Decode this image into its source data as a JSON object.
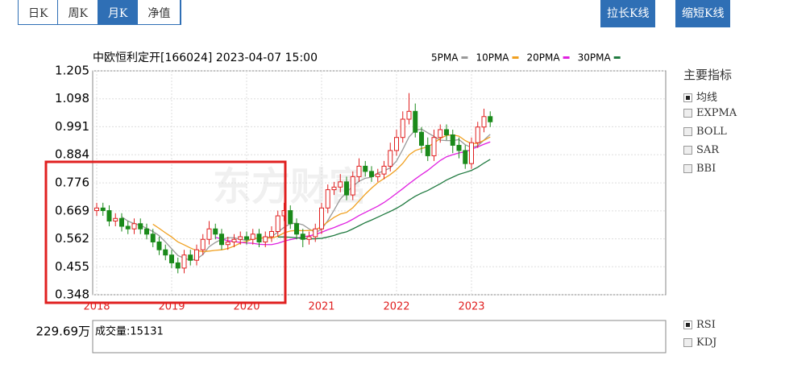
{
  "ui": {
    "tabs": [
      "日K",
      "周K",
      "月K",
      "净值"
    ],
    "buttons": [
      "拉长K线",
      "缩短K线"
    ],
    "indicator_title": "主要指标",
    "indicators": [
      "均线",
      "EXPMA",
      "BOLL",
      "SAR",
      "BBI"
    ],
    "lower_indicators": [
      "RSI",
      "KDJ"
    ],
    "volume_axis": "229.69万",
    "volume_label": "成交量:15131",
    "watermark": "东方财富"
  },
  "chart_data": {
    "type": "candlestick",
    "title": "中欧恒利定开[166024] 2023-04-07 15:00",
    "categories": [
      "2018",
      null,
      null,
      null,
      null,
      null,
      null,
      null,
      null,
      null,
      null,
      null,
      "2019",
      null,
      null,
      null,
      null,
      null,
      null,
      null,
      null,
      null,
      null,
      null,
      "2020",
      null,
      null,
      null,
      null,
      null,
      null,
      null,
      null,
      null,
      null,
      null,
      "2021",
      null,
      null,
      null,
      null,
      null,
      null,
      null,
      null,
      null,
      null,
      null,
      "2022",
      null,
      null,
      null,
      null,
      null,
      null,
      null,
      null,
      null,
      null,
      null,
      "2023",
      null,
      null,
      null
    ],
    "open": [
      0.67,
      0.68,
      0.67,
      0.63,
      0.64,
      0.61,
      0.6,
      0.62,
      0.6,
      0.58,
      0.55,
      0.52,
      0.5,
      0.47,
      0.45,
      0.5,
      0.48,
      0.52,
      0.56,
      0.6,
      0.58,
      0.54,
      0.55,
      0.56,
      0.57,
      0.56,
      0.58,
      0.55,
      0.57,
      0.59,
      0.65,
      0.67,
      0.62,
      0.58,
      0.56,
      0.57,
      0.6,
      0.68,
      0.75,
      0.76,
      0.78,
      0.73,
      0.8,
      0.84,
      0.82,
      0.8,
      0.81,
      0.84,
      0.9,
      0.95,
      1.02,
      1.05,
      0.97,
      0.92,
      0.88,
      0.95,
      0.98,
      0.96,
      0.92,
      0.9,
      0.85,
      0.93,
      0.99,
      1.03
    ],
    "high": [
      0.7,
      0.7,
      0.69,
      0.66,
      0.66,
      0.63,
      0.64,
      0.64,
      0.62,
      0.6,
      0.57,
      0.54,
      0.52,
      0.49,
      0.52,
      0.52,
      0.54,
      0.58,
      0.63,
      0.62,
      0.6,
      0.57,
      0.58,
      0.59,
      0.59,
      0.6,
      0.6,
      0.59,
      0.61,
      0.67,
      0.7,
      0.69,
      0.64,
      0.6,
      0.59,
      0.62,
      0.7,
      0.77,
      0.78,
      0.81,
      0.8,
      0.82,
      0.87,
      0.86,
      0.84,
      0.83,
      0.86,
      0.93,
      0.98,
      1.05,
      1.12,
      1.08,
      0.99,
      0.95,
      0.98,
      1.0,
      1.0,
      0.98,
      0.95,
      0.92,
      0.95,
      1.01,
      1.06,
      1.05
    ],
    "low": [
      0.65,
      0.65,
      0.61,
      0.61,
      0.59,
      0.58,
      0.58,
      0.58,
      0.56,
      0.53,
      0.5,
      0.48,
      0.45,
      0.43,
      0.43,
      0.46,
      0.46,
      0.5,
      0.54,
      0.56,
      0.52,
      0.52,
      0.53,
      0.54,
      0.54,
      0.54,
      0.53,
      0.53,
      0.55,
      0.57,
      0.63,
      0.6,
      0.56,
      0.53,
      0.54,
      0.55,
      0.58,
      0.66,
      0.73,
      0.74,
      0.71,
      0.71,
      0.78,
      0.8,
      0.78,
      0.78,
      0.79,
      0.82,
      0.88,
      0.93,
      1.0,
      0.95,
      0.89,
      0.86,
      0.86,
      0.93,
      0.94,
      0.89,
      0.87,
      0.83,
      0.83,
      0.91,
      0.97,
      0.99
    ],
    "close": [
      0.68,
      0.67,
      0.63,
      0.64,
      0.61,
      0.6,
      0.62,
      0.6,
      0.58,
      0.55,
      0.52,
      0.5,
      0.47,
      0.45,
      0.5,
      0.48,
      0.52,
      0.56,
      0.6,
      0.58,
      0.54,
      0.55,
      0.56,
      0.57,
      0.56,
      0.58,
      0.55,
      0.57,
      0.59,
      0.65,
      0.67,
      0.62,
      0.58,
      0.56,
      0.57,
      0.6,
      0.68,
      0.75,
      0.76,
      0.78,
      0.73,
      0.8,
      0.84,
      0.82,
      0.8,
      0.81,
      0.84,
      0.9,
      0.95,
      1.02,
      1.05,
      0.97,
      0.92,
      0.88,
      0.95,
      0.98,
      0.96,
      0.92,
      0.9,
      0.85,
      0.93,
      0.99,
      1.03,
      1.01
    ],
    "up_color": "#e02020",
    "down_color": "#1a8a1a",
    "series": [
      {
        "name": "5PMA",
        "color": "#999999",
        "values": [
          null,
          null,
          null,
          null,
          0.646,
          0.63,
          0.62,
          0.614,
          0.602,
          0.59,
          0.574,
          0.55,
          0.524,
          0.498,
          0.488,
          0.48,
          0.484,
          0.502,
          0.532,
          0.548,
          0.56,
          0.566,
          0.566,
          0.56,
          0.556,
          0.564,
          0.564,
          0.566,
          0.57,
          0.588,
          0.606,
          0.62,
          0.622,
          0.616,
          0.6,
          0.586,
          0.598,
          0.632,
          0.672,
          0.714,
          0.74,
          0.764,
          0.782,
          0.794,
          0.798,
          0.814,
          0.822,
          0.834,
          0.86,
          0.904,
          0.952,
          0.978,
          0.982,
          0.968,
          0.954,
          0.94,
          0.938,
          0.938,
          0.942,
          0.922,
          0.912,
          0.918,
          0.94,
          0.962
        ]
      },
      {
        "name": "10PMA",
        "color": "#f0a020",
        "values": [
          null,
          null,
          null,
          null,
          null,
          null,
          null,
          null,
          null,
          0.618,
          0.602,
          0.585,
          0.569,
          0.55,
          0.539,
          0.527,
          0.517,
          0.513,
          0.515,
          0.518,
          0.52,
          0.525,
          0.534,
          0.546,
          0.552,
          0.562,
          0.565,
          0.566,
          0.565,
          0.572,
          0.585,
          0.592,
          0.594,
          0.593,
          0.594,
          0.596,
          0.609,
          0.627,
          0.644,
          0.657,
          0.663,
          0.681,
          0.707,
          0.733,
          0.756,
          0.777,
          0.793,
          0.808,
          0.827,
          0.851,
          0.883,
          0.9,
          0.908,
          0.914,
          0.929,
          0.946,
          0.958,
          0.96,
          0.955,
          0.938,
          0.926,
          0.928,
          0.939,
          0.952
        ]
      },
      {
        "name": "20PMA",
        "color": "#e020e0",
        "values": [
          null,
          null,
          null,
          null,
          null,
          null,
          null,
          null,
          null,
          null,
          null,
          null,
          null,
          null,
          null,
          null,
          null,
          null,
          null,
          0.568,
          0.561,
          0.555,
          0.552,
          0.548,
          0.546,
          0.545,
          0.541,
          0.54,
          0.54,
          0.545,
          0.553,
          0.559,
          0.564,
          0.57,
          0.573,
          0.579,
          0.587,
          0.597,
          0.605,
          0.615,
          0.624,
          0.637,
          0.651,
          0.663,
          0.675,
          0.687,
          0.701,
          0.718,
          0.736,
          0.754,
          0.773,
          0.791,
          0.808,
          0.824,
          0.843,
          0.862,
          0.876,
          0.884,
          0.891,
          0.895,
          0.905,
          0.914,
          0.924,
          0.933
        ]
      },
      {
        "name": "30PMA",
        "color": "#207a40",
        "values": [
          null,
          null,
          null,
          null,
          null,
          null,
          null,
          null,
          null,
          null,
          null,
          null,
          null,
          null,
          null,
          null,
          null,
          null,
          null,
          null,
          null,
          null,
          null,
          null,
          null,
          null,
          null,
          null,
          null,
          0.569,
          0.569,
          0.568,
          0.566,
          0.563,
          0.562,
          0.562,
          0.564,
          0.569,
          0.575,
          0.583,
          0.589,
          0.6,
          0.612,
          0.624,
          0.634,
          0.645,
          0.656,
          0.667,
          0.679,
          0.693,
          0.71,
          0.725,
          0.737,
          0.747,
          0.76,
          0.773,
          0.787,
          0.798,
          0.809,
          0.816,
          0.824,
          0.836,
          0.852,
          0.866
        ]
      }
    ],
    "ylim": [
      0.348,
      1.205
    ],
    "yticks": [
      1.205,
      1.098,
      0.991,
      0.884,
      0.776,
      0.669,
      0.562,
      0.455,
      0.348
    ],
    "grid": true
  }
}
